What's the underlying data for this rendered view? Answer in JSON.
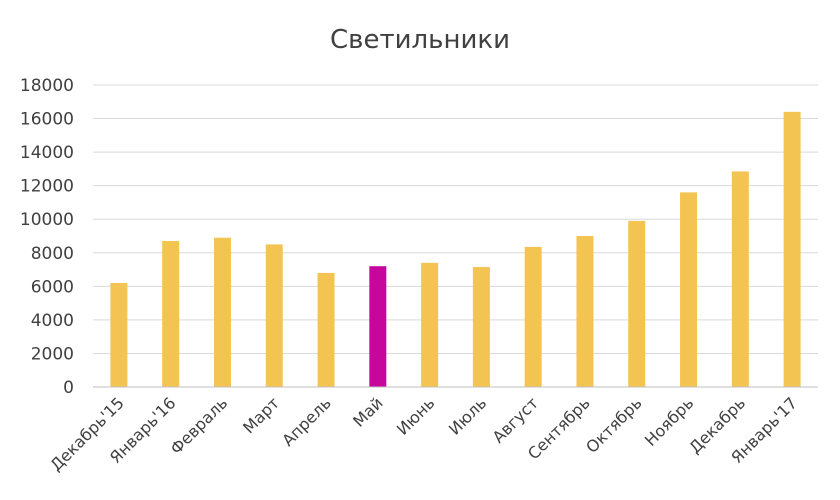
{
  "chart_data": {
    "type": "bar",
    "title": "Светильники",
    "xlabel": "",
    "ylabel": "",
    "ylim": [
      0,
      18000
    ],
    "yticks": [
      0,
      2000,
      4000,
      6000,
      8000,
      10000,
      12000,
      14000,
      16000,
      18000
    ],
    "grid": true,
    "categories": [
      "Декабрь'15",
      "Январь'16",
      "Февраль",
      "Март",
      "Апрель",
      "Май",
      "Июнь",
      "Июль",
      "Август",
      "Сентябрь",
      "Октябрь",
      "Ноябрь",
      "Декабрь",
      "Январь'17"
    ],
    "series": [
      {
        "values": [
          6200,
          8700,
          8900,
          8500,
          6800,
          7200,
          7400,
          7150,
          8350,
          9000,
          9900,
          11600,
          12850,
          16400
        ],
        "color": "#F4C453",
        "highlight_index": 5,
        "highlight_color": "#C7079B"
      }
    ]
  }
}
